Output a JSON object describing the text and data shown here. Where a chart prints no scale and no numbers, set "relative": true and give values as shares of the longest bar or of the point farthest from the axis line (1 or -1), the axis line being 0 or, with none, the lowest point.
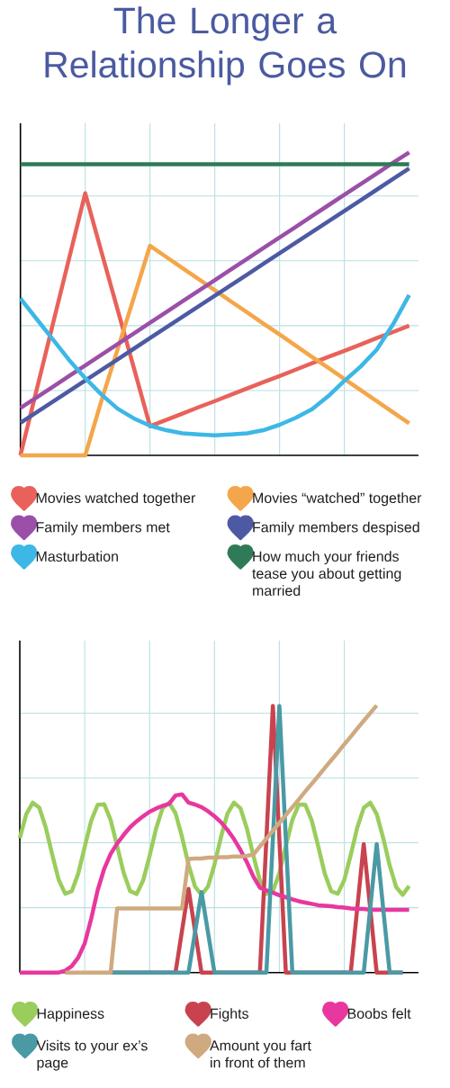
{
  "chart_data": [
    {
      "type": "line",
      "title": "The Longer a Relationship Goes On",
      "relative": true,
      "grid": true,
      "legend": "bottom",
      "categories": [
        null,
        null,
        null,
        null,
        null,
        null,
        null,
        null,
        null,
        null,
        null,
        null,
        null,
        null,
        null,
        null,
        null,
        null,
        null,
        null,
        null,
        null,
        null,
        null,
        null
      ],
      "series": [
        {
          "name": "Movies watched together",
          "color": "#e8625a",
          "values": [
            0,
            0.216,
            0.433,
            0.649,
            0.865,
            0.672,
            0.481,
            0.289,
            0.096,
            0.117,
            0.138,
            0.159,
            0.179,
            0.2,
            0.221,
            0.242,
            0.262,
            0.283,
            0.304,
            0.325,
            0.345,
            0.366,
            0.387,
            0.407,
            0.428
          ]
        },
        {
          "name": "Movies “watched” together",
          "color": "#f4a64a",
          "values": [
            0,
            0,
            0,
            0,
            0,
            0.18,
            0.35,
            0.52,
            0.692,
            0.655,
            0.618,
            0.582,
            0.545,
            0.508,
            0.472,
            0.435,
            0.399,
            0.362,
            0.325,
            0.289,
            0.252,
            0.216,
            0.179,
            0.142,
            0.106
          ]
        },
        {
          "name": "Family members met",
          "color": "#9b4fa8",
          "values": [
            0.156,
            0.191,
            0.226,
            0.262,
            0.297,
            0.332,
            0.367,
            0.402,
            0.438,
            0.473,
            0.508,
            0.543,
            0.578,
            0.614,
            0.649,
            0.684,
            0.719,
            0.754,
            0.79,
            0.825,
            0.86,
            0.895,
            0.93,
            0.966,
            1.0
          ]
        },
        {
          "name": "Family members despised",
          "color": "#4d5aa3",
          "values": [
            0.107,
            0.142,
            0.177,
            0.212,
            0.247,
            0.282,
            0.317,
            0.352,
            0.387,
            0.422,
            0.457,
            0.492,
            0.527,
            0.562,
            0.597,
            0.632,
            0.667,
            0.702,
            0.737,
            0.772,
            0.807,
            0.842,
            0.877,
            0.912,
            0.947
          ]
        },
        {
          "name": "Masturbation",
          "color": "#3db7e6",
          "values": [
            0.518,
            0.45,
            0.383,
            0.315,
            0.255,
            0.201,
            0.154,
            0.122,
            0.098,
            0.083,
            0.073,
            0.069,
            0.066,
            0.069,
            0.073,
            0.083,
            0.101,
            0.124,
            0.152,
            0.195,
            0.246,
            0.293,
            0.349,
            0.432,
            0.529
          ]
        },
        {
          "name": "How much your friends tease you about getting married",
          "color": "#2f7a57",
          "values": [
            0.961,
            0.961,
            0.961,
            0.961,
            0.961,
            0.961,
            0.961,
            0.961,
            0.961,
            0.961,
            0.961,
            0.961,
            0.961,
            0.961,
            0.961,
            0.961,
            0.961,
            0.961,
            0.961,
            0.961,
            0.961,
            0.961,
            0.961,
            0.961,
            0.961
          ]
        }
      ]
    },
    {
      "type": "line",
      "relative": true,
      "grid": true,
      "legend": "bottom",
      "categories": [
        null,
        null,
        null,
        null,
        null,
        null,
        null,
        null,
        null,
        null,
        null,
        null,
        null,
        null,
        null,
        null,
        null,
        null,
        null,
        null,
        null,
        null,
        null,
        null,
        null,
        null,
        null,
        null,
        null,
        null,
        null,
        null,
        null,
        null,
        null,
        null,
        null,
        null,
        null,
        null,
        null,
        null,
        null,
        null,
        null,
        null,
        null,
        null,
        null,
        null,
        null,
        null,
        null,
        null,
        null,
        null,
        null,
        null,
        null,
        null,
        null
      ],
      "series": [
        {
          "name": "Happiness",
          "color": "#9acd5c",
          "values": [
            0.503,
            0.593,
            0.636,
            0.617,
            0.543,
            0.441,
            0.347,
            0.295,
            0.304,
            0.37,
            0.47,
            0.568,
            0.628,
            0.63,
            0.571,
            0.474,
            0.374,
            0.305,
            0.294,
            0.344,
            0.436,
            0.539,
            0.615,
            0.636,
            0.596,
            0.508,
            0.404,
            0.322,
            0.291,
            0.322,
            0.404,
            0.507,
            0.595,
            0.636,
            0.615,
            0.539,
            0.437,
            0.344,
            0.294,
            0.305,
            0.373,
            0.474,
            0.571,
            0.629,
            0.628,
            0.568,
            0.471,
            0.37,
            0.304,
            0.295,
            0.346,
            0.44,
            0.542,
            0.616,
            0.636,
            0.593,
            0.504,
            0.401,
            0.32,
            0.291,
            0.324
          ]
        },
        {
          "name": "Fights",
          "color": "#c8434f",
          "values": [
            null,
            null,
            null,
            null,
            null,
            null,
            null,
            null,
            null,
            null,
            null,
            null,
            null,
            null,
            0,
            0,
            0,
            0,
            0,
            0,
            0,
            0,
            0,
            0,
            0,
            0.157,
            0.313,
            0.157,
            0,
            0,
            0,
            0,
            0,
            0,
            0,
            0,
            0,
            0,
            0.499,
            0.998,
            0.499,
            0,
            0,
            0,
            0,
            0,
            0,
            0,
            0,
            0,
            0,
            0,
            0.24,
            0.481,
            0.24,
            0,
            0,
            0,
            0,
            0,
            null
          ]
        },
        {
          "name": "Boobs felt",
          "color": "#e8379e",
          "values": [
            0,
            0,
            0,
            0,
            0,
            0,
            0,
            0.007,
            0.024,
            0.056,
            0.109,
            0.201,
            0.308,
            0.388,
            0.444,
            0.483,
            0.515,
            0.544,
            0.566,
            0.585,
            0.602,
            0.614,
            0.624,
            0.631,
            0.663,
            0.667,
            0.636,
            0.629,
            0.619,
            0.604,
            0.585,
            0.563,
            0.534,
            0.5,
            0.459,
            0.413,
            0.359,
            0.318,
            0.308,
            0.299,
            0.289,
            0.282,
            0.274,
            0.267,
            0.262,
            0.257,
            0.252,
            0.25,
            0.248,
            0.245,
            0.243,
            0.24,
            0.238,
            0.238,
            0.235,
            0.235,
            0.235,
            0.235,
            0.235,
            0.235,
            0.235
          ]
        },
        {
          "name": "Visits to your ex’s page",
          "color": "#4a9aa5",
          "values": [
            null,
            null,
            null,
            null,
            null,
            null,
            null,
            null,
            null,
            null,
            null,
            null,
            null,
            null,
            0,
            0,
            0,
            0,
            0,
            0,
            0,
            0,
            0,
            0,
            0,
            0,
            0,
            0.15,
            0.301,
            0.15,
            0,
            0,
            0,
            0,
            0,
            0,
            0,
            0,
            0,
            0.499,
            0.998,
            0.499,
            0,
            0,
            0,
            0,
            0,
            0,
            0,
            0,
            0,
            0,
            0,
            0,
            0.24,
            0.481,
            0.24,
            0,
            0,
            0,
            null
          ]
        },
        {
          "name": "Amount you fart in front of them",
          "color": "#cfaa80",
          "values": [
            null,
            null,
            null,
            null,
            null,
            null,
            null,
            0,
            0,
            0,
            0,
            0,
            0,
            0,
            0,
            0.24,
            0.24,
            0.24,
            0.24,
            0.24,
            0.24,
            0.24,
            0.24,
            0.24,
            0.24,
            0.24,
            0.425,
            0.427,
            0.427,
            0.43,
            0.43,
            0.432,
            0.432,
            0.434,
            0.434,
            0.437,
            0.442,
            0.472,
            0.501,
            0.531,
            0.56,
            0.59,
            0.619,
            0.648,
            0.678,
            0.707,
            0.736,
            0.766,
            0.795,
            0.824,
            0.854,
            0.883,
            0.913,
            0.942,
            0.971,
            1.0,
            null,
            null,
            null,
            null,
            null
          ]
        }
      ]
    }
  ]
}
